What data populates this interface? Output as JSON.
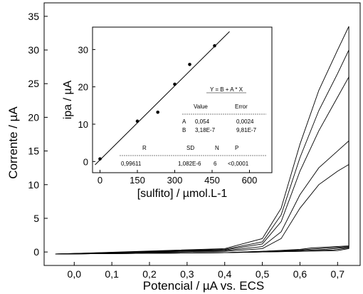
{
  "chart_data": [
    {
      "type": "line",
      "xlabel": "Potencial / µA vs. ECS",
      "ylabel": "Corrente / µA",
      "xlim": [
        -0.08,
        0.76
      ],
      "ylim": [
        -2,
        37
      ],
      "x_ticks": [
        "0,0",
        "0,1",
        "0,2",
        "0,3",
        "0,4",
        "0,5",
        "0,6",
        "0,7"
      ],
      "y_ticks": [
        "0",
        "5",
        "10",
        "15",
        "20",
        "25",
        "30",
        "35"
      ],
      "series": [
        {
          "x": [
            -0.05,
            0.4,
            0.5,
            0.55,
            0.6,
            0.65,
            0.7,
            0.73,
            0.73,
            0.7,
            0.6,
            0.5,
            0.4,
            -0.05
          ],
          "y": [
            -0.3,
            0.1,
            0.5,
            2.0,
            6.5,
            10.0,
            12.0,
            13.0,
            0.5,
            0.2,
            0.1,
            0.0,
            -0.1,
            -0.3
          ]
        },
        {
          "x": [
            -0.05,
            0.4,
            0.5,
            0.55,
            0.6,
            0.65,
            0.7,
            0.73,
            0.73,
            0.69,
            0.6,
            0.5,
            0.4,
            -0.05
          ],
          "y": [
            -0.3,
            0.2,
            0.8,
            3.0,
            8.5,
            12.5,
            15.0,
            16.5,
            0.6,
            0.3,
            0.1,
            0.0,
            -0.1,
            -0.3
          ]
        },
        {
          "x": [
            -0.05,
            0.4,
            0.5,
            0.55,
            0.6,
            0.65,
            0.7,
            0.73,
            0.73,
            0.67,
            0.6,
            0.5,
            0.4,
            -0.05
          ],
          "y": [
            -0.3,
            0.3,
            1.2,
            4.5,
            12.0,
            18.0,
            23.0,
            26.0,
            0.7,
            0.4,
            0.2,
            0.0,
            -0.1,
            -0.3
          ]
        },
        {
          "x": [
            -0.05,
            0.4,
            0.5,
            0.55,
            0.6,
            0.65,
            0.7,
            0.73,
            0.73,
            0.65,
            0.6,
            0.5,
            0.4,
            -0.05
          ],
          "y": [
            -0.3,
            0.4,
            1.5,
            5.5,
            14.0,
            21.0,
            26.5,
            30.0,
            0.8,
            0.5,
            0.3,
            0.1,
            -0.1,
            -0.3
          ]
        },
        {
          "x": [
            -0.05,
            0.4,
            0.5,
            0.55,
            0.6,
            0.65,
            0.7,
            0.73,
            0.73,
            0.63,
            0.6,
            0.5,
            0.4,
            -0.05
          ],
          "y": [
            -0.3,
            0.5,
            2.0,
            6.5,
            16.0,
            24.0,
            30.0,
            33.5,
            0.9,
            0.6,
            0.4,
            0.1,
            -0.1,
            -0.3
          ]
        }
      ]
    },
    {
      "type": "scatter",
      "xlabel": "[sulfito] / µmol.L-1",
      "ylabel": "ipa / µA",
      "xlim": [
        -30,
        690
      ],
      "ylim": [
        -3,
        36
      ],
      "x_ticks": [
        "0",
        "150",
        "300",
        "450",
        "600"
      ],
      "y_ticks": [
        "0",
        "10",
        "20",
        "30"
      ],
      "points": [
        {
          "x": 0,
          "y": 0.7
        },
        {
          "x": 150,
          "y": 10.8
        },
        {
          "x": 232,
          "y": 13.2
        },
        {
          "x": 300,
          "y": 20.7
        },
        {
          "x": 360,
          "y": 26.0
        },
        {
          "x": 460,
          "y": 31.0
        }
      ],
      "fit_line": {
        "x": [
          -20,
          520
        ],
        "y": [
          -0.9,
          34.8
        ]
      },
      "fit_table": {
        "equation": "Y = B + A * X",
        "header": [
          "Value",
          "Error"
        ],
        "rows": [
          {
            "param": "A",
            "value": "0,054",
            "error": "0,0024"
          },
          {
            "param": "B",
            "value": "3,18E-7",
            "error": "9,81E-7"
          }
        ],
        "stats_header": [
          "R",
          "SD",
          "N",
          "P"
        ],
        "stats": [
          "0,99611",
          "1,082E-6",
          "6",
          "<0,0001"
        ]
      }
    }
  ]
}
